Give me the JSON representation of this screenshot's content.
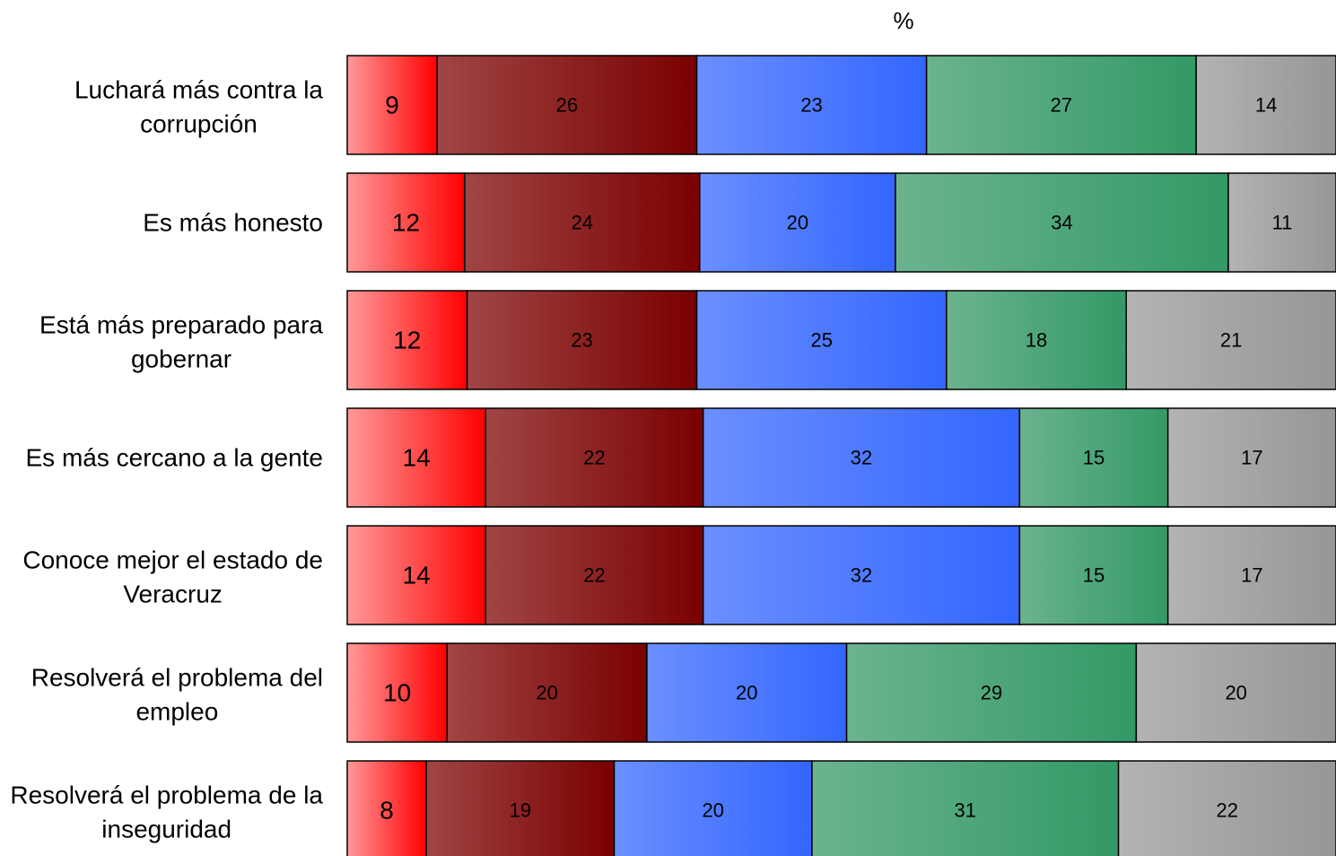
{
  "chart_data": {
    "type": "bar",
    "orientation": "horizontal",
    "stacked": true,
    "xlabel": "%",
    "categories": [
      "Luchará más contra la corrupción",
      "Es más honesto",
      "Está más preparado para gobernar",
      "Es más cercano a la gente",
      "Conoce mejor el estado de Veracruz",
      "Resolverá el problema del empleo",
      "Resolverá el problema de la inseguridad"
    ],
    "category_lines": [
      [
        "Luchará más contra la",
        "corrupción"
      ],
      [
        "Es más honesto"
      ],
      [
        "Está más preparado para",
        "gobernar"
      ],
      [
        "Es más cercano a la gente"
      ],
      [
        "Conoce mejor el estado de",
        "Veracruz"
      ],
      [
        "Resolverá el problema del",
        "empleo"
      ],
      [
        "Resolverá el problema de la",
        "inseguridad"
      ]
    ],
    "series": [
      {
        "values": [
          9,
          12,
          12,
          14,
          14,
          10,
          8
        ],
        "color_light": "#ff9999",
        "color_dark": "#ff0000"
      },
      {
        "values": [
          26,
          24,
          23,
          22,
          22,
          20,
          19
        ],
        "color_light": "#a04545",
        "color_dark": "#7a0000"
      },
      {
        "values": [
          23,
          20,
          25,
          32,
          32,
          20,
          20
        ],
        "color_light": "#6b8fff",
        "color_dark": "#3366ff"
      },
      {
        "values": [
          27,
          34,
          18,
          15,
          15,
          29,
          31
        ],
        "color_light": "#6bb38f",
        "color_dark": "#339966"
      },
      {
        "values": [
          14,
          11,
          21,
          17,
          17,
          20,
          22
        ],
        "color_light": "#b3b3b3",
        "color_dark": "#969696"
      }
    ],
    "legend": "none",
    "grid": false
  }
}
